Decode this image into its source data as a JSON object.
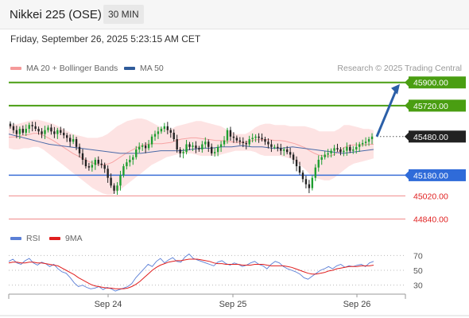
{
  "header": {
    "title": "Nikkei 225 (OSE)",
    "timeframe": "30 MIN"
  },
  "datetime": "Friday, September 26, 2025 5:23:15 AM CET",
  "legend": [
    {
      "label": "MA 20 + Bollinger Bands",
      "color": "#f59a9a"
    },
    {
      "label": "MA 50",
      "color": "#2f5b9a"
    }
  ],
  "credit": "Research © 2025 Trading Central",
  "rsi_legend": [
    {
      "label": "RSI",
      "color": "#5b7fd6"
    },
    {
      "label": "9MA",
      "color": "#e01e1e"
    }
  ],
  "colors": {
    "up": "#1d9e2f",
    "down": "#222222",
    "bb_fill": "#fde3e3",
    "ma50": "#4a6aa8",
    "green_level": "#4a9e12",
    "blue_level": "#3b6fd6",
    "red_level": "#f08a8a",
    "arrow": "#2b5fa8"
  },
  "chart_data": [
    {
      "type": "candlestick",
      "x_ticks": [
        "Sep 24",
        "Sep 25",
        "Sep 26"
      ],
      "ylim": [
        44800,
        45960
      ],
      "levels": [
        {
          "value": 45900,
          "label": "45900.00",
          "style": "green"
        },
        {
          "value": 45720,
          "label": "45720.00",
          "style": "green"
        },
        {
          "value": 45480,
          "label": "45480.00",
          "style": "current"
        },
        {
          "value": 45180,
          "label": "45180.00",
          "style": "blue"
        },
        {
          "value": 45020,
          "label": "45020.00",
          "style": "red"
        },
        {
          "value": 44840,
          "label": "44840.00",
          "style": "red"
        }
      ],
      "projection": {
        "from": 45480,
        "to": 45900
      },
      "close": [
        45560,
        45530,
        45500,
        45540,
        45510,
        45540,
        45570,
        45560,
        45540,
        45520,
        45500,
        45530,
        45550,
        45520,
        45500,
        45530,
        45510,
        45490,
        45470,
        45440,
        45460,
        45400,
        45350,
        45300,
        45250,
        45240,
        45260,
        45300,
        45270,
        45260,
        45230,
        45160,
        45100,
        45060,
        45100,
        45180,
        45250,
        45280,
        45300,
        45320,
        45380,
        45400,
        45410,
        45390,
        45420,
        45480,
        45500,
        45520,
        45540,
        45560,
        45530,
        45510,
        45460,
        45380,
        45350,
        45360,
        45420,
        45400,
        45410,
        45390,
        45380,
        45420,
        45440,
        45400,
        45350,
        45360,
        45400,
        45420,
        45450,
        45530,
        45480,
        45470,
        45450,
        45440,
        45430,
        45420,
        45460,
        45470,
        45480,
        45470,
        45460,
        45440,
        45420,
        45400,
        45400,
        45390,
        45370,
        45380,
        45360,
        45340,
        45300,
        45250,
        45200,
        45150,
        45110,
        45080,
        45160,
        45240,
        45300,
        45320,
        45340,
        45350,
        45370,
        45390,
        45380,
        45360,
        45370,
        45400,
        45370,
        45380,
        45400,
        45420,
        45430,
        45440,
        45460,
        45480
      ],
      "bb_upper": [
        45560,
        45575,
        45580,
        45590,
        45600,
        45610,
        45610,
        45600,
        45590,
        45580,
        45560,
        45540,
        45520,
        45500,
        45490,
        45480,
        45470,
        45470,
        45470,
        45480,
        45500,
        45530,
        45560,
        45580,
        45600,
        45610,
        45620,
        45620,
        45610,
        45590,
        45570,
        45550,
        45540,
        45540,
        45560,
        45570,
        45580,
        45590,
        45600,
        45600,
        45590,
        45580,
        45570,
        45560,
        45540,
        45520,
        45500,
        45500,
        45500,
        45520,
        45550,
        45570,
        45580,
        45580,
        45570,
        45570,
        45570,
        45560,
        45560,
        45560,
        45560,
        45550,
        45540,
        45520,
        45520,
        45520,
        45520,
        45540,
        45570,
        45570,
        45560,
        45550,
        45540,
        45540,
        45530
      ],
      "bb_lower": [
        45390,
        45380,
        45380,
        45390,
        45390,
        45400,
        45400,
        45380,
        45350,
        45320,
        45290,
        45260,
        45230,
        45200,
        45170,
        45140,
        45110,
        45080,
        45060,
        45040,
        45030,
        45030,
        45050,
        45080,
        45110,
        45140,
        45170,
        45200,
        45230,
        45260,
        45280,
        45300,
        45320,
        45330,
        45340,
        45350,
        45350,
        45350,
        45340,
        45330,
        45330,
        45330,
        45330,
        45340,
        45350,
        45360,
        45370,
        45370,
        45370,
        45370,
        45360,
        45340,
        45330,
        45330,
        45330,
        45330,
        45320,
        45310,
        45290,
        45260,
        45230,
        45190,
        45160,
        45150,
        45140,
        45140,
        45160,
        45190,
        45220,
        45250,
        45270,
        45280,
        45290,
        45300,
        45310
      ],
      "ma50": [
        45500,
        45480,
        45460,
        45440,
        45420,
        45410,
        45400,
        45390,
        45380,
        45370,
        45360,
        45350,
        45350,
        45350,
        45360,
        45370,
        45370,
        45370,
        45380,
        45390,
        45390,
        45400,
        45400,
        45410,
        45400,
        45400,
        45390,
        45390,
        45400,
        45390,
        45380,
        45370,
        45360,
        45350,
        45360,
        45370,
        45380
      ]
    },
    {
      "type": "line",
      "title": "RSI",
      "y_ticks": [
        70,
        50,
        30
      ],
      "ylim": [
        20,
        80
      ],
      "series": [
        {
          "name": "RSI",
          "values": [
            62,
            65,
            60,
            58,
            63,
            66,
            60,
            57,
            61,
            59,
            55,
            58,
            52,
            48,
            46,
            40,
            33,
            28,
            30,
            27,
            25,
            26,
            28,
            24,
            27,
            25,
            22,
            24,
            26,
            28,
            32,
            40,
            46,
            52,
            58,
            55,
            62,
            66,
            60,
            64,
            67,
            62,
            61,
            68,
            72,
            66,
            64,
            62,
            60,
            58,
            56,
            61,
            63,
            59,
            57,
            60,
            58,
            55,
            57,
            60,
            62,
            58,
            56,
            52,
            58,
            62,
            60,
            55,
            52,
            50,
            48,
            45,
            40,
            38,
            42,
            46,
            50,
            52,
            55,
            52,
            56,
            58,
            54,
            56,
            55,
            57,
            58,
            55,
            60,
            62
          ]
        },
        {
          "name": "9MA",
          "values": [
            60,
            61,
            61,
            60,
            60,
            61,
            61,
            60,
            60,
            59,
            58,
            57,
            56,
            53,
            50,
            47,
            44,
            40,
            37,
            34,
            31,
            29,
            28,
            27,
            26,
            26,
            25,
            25,
            25,
            26,
            28,
            31,
            35,
            40,
            45,
            50,
            54,
            57,
            59,
            61,
            62,
            63,
            63,
            64,
            65,
            65,
            65,
            64,
            63,
            62,
            60,
            59,
            59,
            58,
            58,
            58,
            58,
            57,
            57,
            57,
            58,
            58,
            58,
            57,
            56,
            56,
            56,
            56,
            55,
            54,
            52,
            50,
            48,
            46,
            45,
            45,
            46,
            47,
            49,
            50,
            52,
            53,
            54,
            55,
            55,
            55,
            56,
            56,
            56,
            57
          ]
        }
      ]
    }
  ]
}
